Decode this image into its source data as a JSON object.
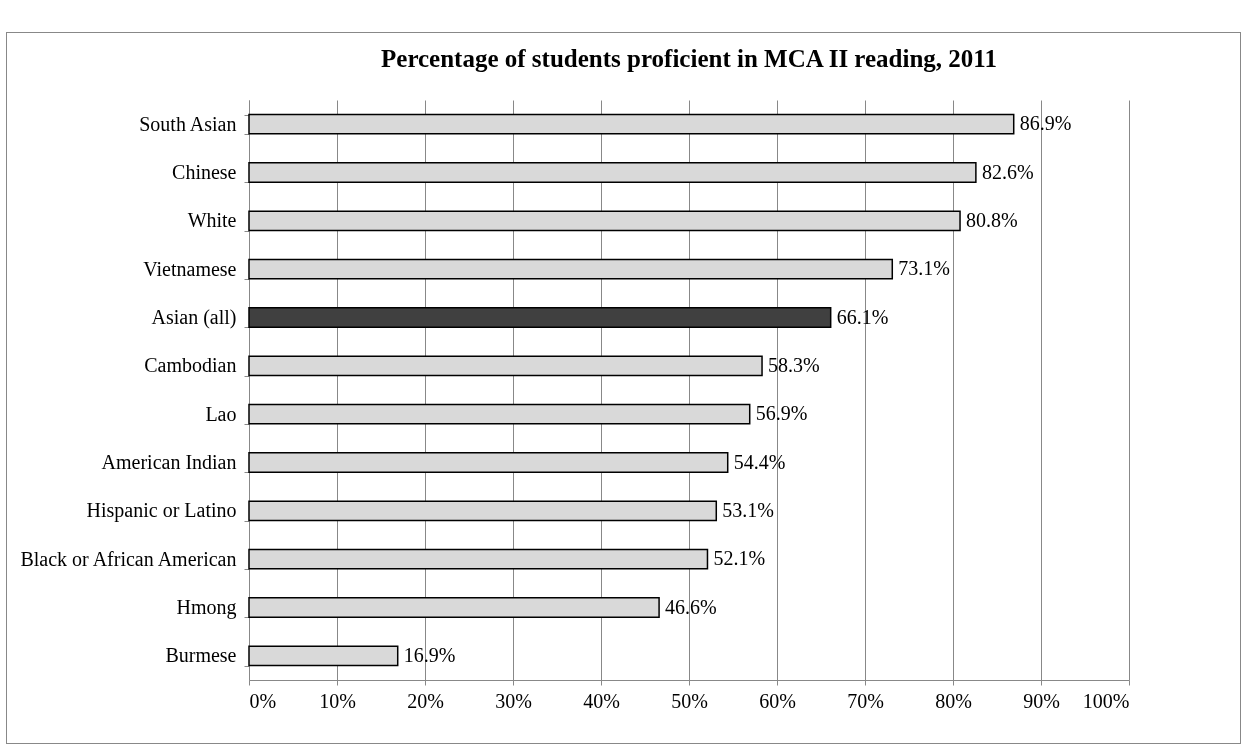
{
  "chart_data": {
    "type": "bar",
    "orientation": "horizontal",
    "title": "Percentage of students proficient in MCA II reading, 2011",
    "categories": [
      "South Asian",
      "Chinese",
      "White",
      "Vietnamese",
      "Asian (all)",
      "Cambodian",
      "Lao",
      "American Indian",
      "Hispanic or Latino",
      "Black or African American",
      "Hmong",
      "Burmese"
    ],
    "values": [
      86.9,
      82.6,
      80.8,
      73.1,
      66.1,
      58.3,
      56.9,
      54.4,
      53.1,
      52.1,
      46.6,
      16.9
    ],
    "value_labels": [
      "86.9%",
      "82.6%",
      "80.8%",
      "73.1%",
      "66.1%",
      "58.3%",
      "56.9%",
      "54.4%",
      "53.1%",
      "52.1%",
      "46.6%",
      "16.9%"
    ],
    "colors": [
      "#d9d9d9",
      "#d9d9d9",
      "#d9d9d9",
      "#d9d9d9",
      "#404040",
      "#d9d9d9",
      "#d9d9d9",
      "#d9d9d9",
      "#d9d9d9",
      "#d9d9d9",
      "#d9d9d9",
      "#d9d9d9"
    ],
    "xlim": [
      0,
      100
    ],
    "xticks": [
      {
        "value": 0,
        "label": "0%"
      },
      {
        "value": 10,
        "label": "10%"
      },
      {
        "value": 20,
        "label": "20%"
      },
      {
        "value": 30,
        "label": "30%"
      },
      {
        "value": 40,
        "label": "40%"
      },
      {
        "value": 50,
        "label": "50%"
      },
      {
        "value": 60,
        "label": "60%"
      },
      {
        "value": 70,
        "label": "70%"
      },
      {
        "value": 80,
        "label": "80%"
      },
      {
        "value": 90,
        "label": "90%"
      },
      {
        "value": 100,
        "label": "100%"
      }
    ],
    "grid": "x"
  }
}
